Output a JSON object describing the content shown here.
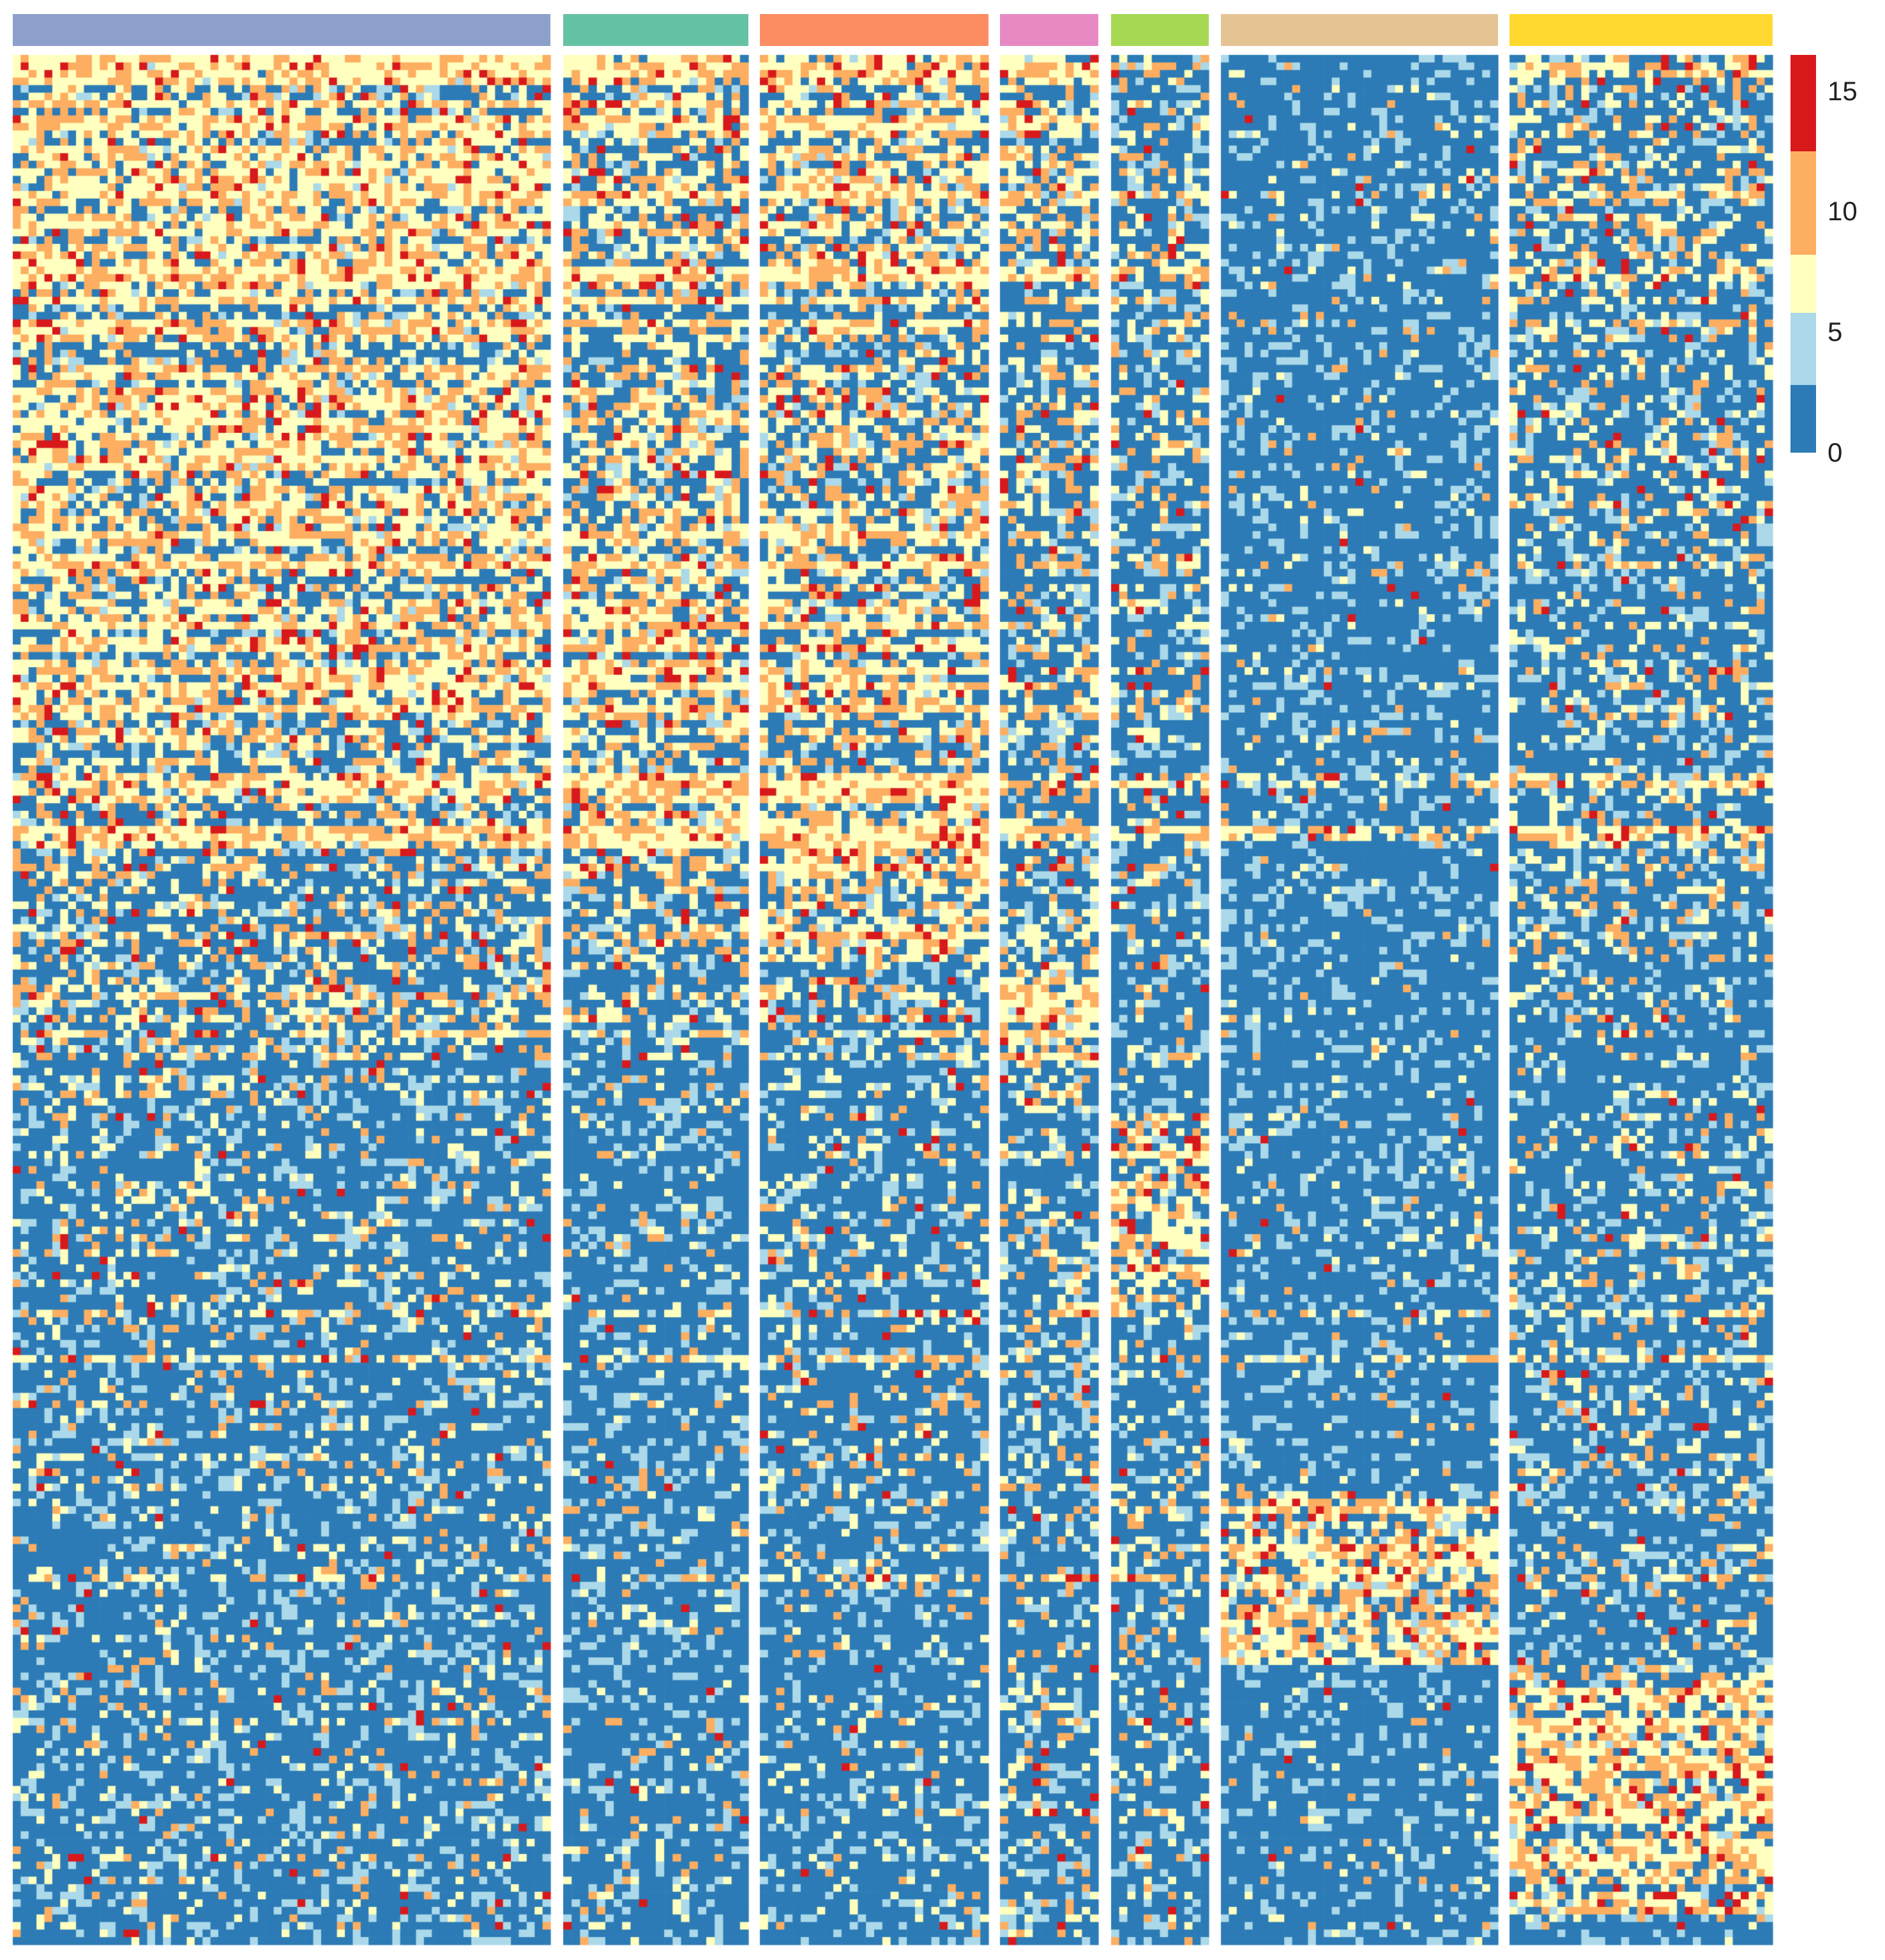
{
  "chart_data": {
    "type": "heatmap",
    "title": "",
    "xlabel": "",
    "ylabel": "",
    "color_scale": {
      "breaks": [
        0,
        2.8,
        5.8,
        8.2,
        12.5,
        16.5
      ],
      "colors": [
        "#2c7bb6",
        "#abd9e9",
        "#ffffbf",
        "#fdae61",
        "#d7191c"
      ],
      "tick_labels": [
        "0",
        "5",
        "10",
        "15"
      ],
      "tick_values": [
        0,
        5,
        10,
        15
      ],
      "range": [
        0,
        16.5
      ]
    },
    "column_groups": [
      {
        "color": "#8da0cb",
        "n_cols": 68
      },
      {
        "color": "#66c2a5",
        "n_cols": 22
      },
      {
        "color": "#fc8d62",
        "n_cols": 28
      },
      {
        "color": "#e78ac3",
        "n_cols": 12
      },
      {
        "color": "#a6d854",
        "n_cols": 12
      },
      {
        "color": "#e5c494",
        "n_cols": 35
      },
      {
        "color": "#ffd92f",
        "n_cols": 33
      }
    ],
    "n_rows": 250,
    "legend_position": "right",
    "grid": false
  }
}
